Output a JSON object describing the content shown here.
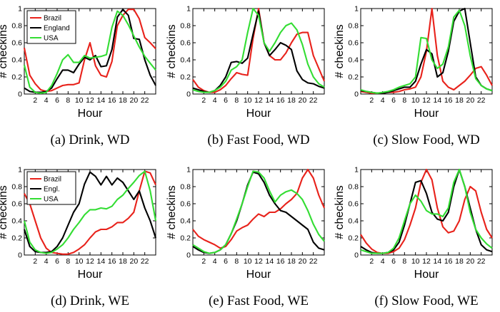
{
  "figure": {
    "type": "small-multiples"
  },
  "chart_data": [
    {
      "type": "line",
      "caption": "(a)  Drink, WD",
      "xlabel": "Hour",
      "ylabel": "# checkins",
      "xlim": [
        0,
        24
      ],
      "ylim": [
        0,
        1
      ],
      "xticks": [
        2,
        4,
        6,
        8,
        10,
        12,
        14,
        16,
        18,
        20,
        22
      ],
      "yticks": [
        0,
        0.2,
        0.4,
        0.6,
        0.8,
        1
      ],
      "legend": {
        "placement": "top-left",
        "entries": [
          "Brazil",
          "England",
          "USA"
        ]
      },
      "x": [
        0,
        1,
        2,
        3,
        4,
        5,
        6,
        7,
        8,
        9,
        10,
        11,
        12,
        13,
        14,
        15,
        16,
        17,
        18,
        19,
        20,
        21,
        22,
        23,
        24
      ],
      "series": [
        {
          "name": "Brazil",
          "color": "#e8221b",
          "values": [
            0.54,
            0.22,
            0.12,
            0.05,
            0.03,
            0.04,
            0.07,
            0.1,
            0.11,
            0.11,
            0.13,
            0.4,
            0.6,
            0.33,
            0.22,
            0.2,
            0.38,
            0.8,
            0.92,
            0.99,
            0.99,
            0.88,
            0.66,
            0.6,
            0.53
          ]
        },
        {
          "name": "England",
          "color": "#000000",
          "values": [
            0.07,
            0.03,
            0.02,
            0.02,
            0.03,
            0.07,
            0.18,
            0.28,
            0.28,
            0.25,
            0.35,
            0.43,
            0.4,
            0.45,
            0.32,
            0.33,
            0.52,
            0.9,
            0.99,
            0.92,
            0.65,
            0.64,
            0.4,
            0.22,
            0.1
          ]
        },
        {
          "name": "USA",
          "color": "#33dd33",
          "values": [
            0.34,
            0.08,
            0.02,
            0.01,
            0.02,
            0.1,
            0.24,
            0.4,
            0.46,
            0.37,
            0.37,
            0.45,
            0.42,
            0.43,
            0.44,
            0.46,
            0.78,
            0.97,
            0.92,
            0.81,
            0.68,
            0.55,
            0.44,
            0.36,
            0.28
          ]
        }
      ]
    },
    {
      "type": "line",
      "caption": "(b)  Fast Food, WD",
      "xlabel": "Hour",
      "ylabel": "# checkins",
      "xlim": [
        0,
        24
      ],
      "ylim": [
        0,
        1
      ],
      "xticks": [
        2,
        4,
        6,
        8,
        10,
        12,
        14,
        16,
        18,
        20,
        22
      ],
      "yticks": [
        0,
        0.2,
        0.4,
        0.6,
        0.8,
        1
      ],
      "legend": null,
      "x": [
        0,
        1,
        2,
        3,
        4,
        5,
        6,
        7,
        8,
        9,
        10,
        11,
        12,
        13,
        14,
        15,
        16,
        17,
        18,
        19,
        20,
        21,
        22,
        23,
        24
      ],
      "series": [
        {
          "name": "Brazil",
          "color": "#e8221b",
          "values": [
            0.17,
            0.08,
            0.04,
            0.02,
            0.02,
            0.05,
            0.1,
            0.18,
            0.25,
            0.23,
            0.22,
            0.65,
            1.0,
            0.6,
            0.45,
            0.4,
            0.4,
            0.48,
            0.6,
            0.7,
            0.72,
            0.72,
            0.45,
            0.3,
            0.15
          ]
        },
        {
          "name": "England",
          "color": "#000000",
          "values": [
            0.07,
            0.05,
            0.03,
            0.02,
            0.04,
            0.1,
            0.2,
            0.37,
            0.38,
            0.36,
            0.42,
            0.7,
            0.97,
            0.6,
            0.45,
            0.52,
            0.6,
            0.57,
            0.52,
            0.27,
            0.17,
            0.13,
            0.12,
            0.09,
            0.07
          ]
        },
        {
          "name": "USA",
          "color": "#33dd33",
          "values": [
            0.05,
            0.03,
            0.02,
            0.02,
            0.04,
            0.08,
            0.15,
            0.28,
            0.32,
            0.4,
            0.72,
            1.0,
            0.92,
            0.6,
            0.5,
            0.6,
            0.72,
            0.8,
            0.83,
            0.75,
            0.58,
            0.35,
            0.2,
            0.12,
            0.08
          ]
        }
      ]
    },
    {
      "type": "line",
      "caption": "(c)  Slow Food, WD",
      "xlabel": "Hour",
      "ylabel": "# checkins",
      "xlim": [
        0,
        24
      ],
      "ylim": [
        0,
        1
      ],
      "xticks": [
        2,
        4,
        6,
        8,
        10,
        12,
        14,
        16,
        18,
        20,
        22
      ],
      "yticks": [
        0,
        0.2,
        0.4,
        0.6,
        0.8,
        1
      ],
      "legend": null,
      "x": [
        0,
        1,
        2,
        3,
        4,
        5,
        6,
        7,
        8,
        9,
        10,
        11,
        12,
        13,
        14,
        15,
        16,
        17,
        18,
        19,
        20,
        21,
        22,
        23,
        24
      ],
      "series": [
        {
          "name": "Brazil",
          "color": "#e8221b",
          "values": [
            0.03,
            0.02,
            0.01,
            0.01,
            0.01,
            0.02,
            0.02,
            0.03,
            0.05,
            0.06,
            0.08,
            0.2,
            0.5,
            1.0,
            0.45,
            0.15,
            0.08,
            0.05,
            0.1,
            0.15,
            0.22,
            0.3,
            0.32,
            0.22,
            0.1
          ]
        },
        {
          "name": "England",
          "color": "#000000",
          "values": [
            0.04,
            0.03,
            0.02,
            0.01,
            0.01,
            0.02,
            0.04,
            0.06,
            0.08,
            0.08,
            0.15,
            0.35,
            0.52,
            0.47,
            0.2,
            0.25,
            0.5,
            0.85,
            0.97,
            1.0,
            0.6,
            0.2,
            0.1,
            0.06,
            0.04
          ]
        },
        {
          "name": "USA",
          "color": "#33dd33",
          "values": [
            0.05,
            0.03,
            0.02,
            0.01,
            0.02,
            0.03,
            0.05,
            0.08,
            0.1,
            0.12,
            0.2,
            0.66,
            0.65,
            0.4,
            0.3,
            0.35,
            0.55,
            0.9,
            0.98,
            0.8,
            0.45,
            0.18,
            0.1,
            0.06,
            0.04
          ]
        }
      ]
    },
    {
      "type": "line",
      "caption": "(d)  Drink, WE",
      "xlabel": "Hour",
      "ylabel": "# checkins",
      "xlim": [
        0,
        24
      ],
      "ylim": [
        0,
        1
      ],
      "xticks": [
        2,
        4,
        6,
        8,
        10,
        12,
        14,
        16,
        18,
        20,
        22
      ],
      "yticks": [
        0,
        0.2,
        0.4,
        0.6,
        0.8,
        1
      ],
      "legend": {
        "placement": "top-left",
        "entries": [
          "Brazil",
          "Engl.",
          "USA"
        ]
      },
      "x": [
        0,
        1,
        2,
        3,
        4,
        5,
        6,
        7,
        8,
        9,
        10,
        11,
        12,
        13,
        14,
        15,
        16,
        17,
        18,
        19,
        20,
        21,
        22,
        23,
        24
      ],
      "series": [
        {
          "name": "Brazil",
          "color": "#e8221b",
          "values": [
            0.72,
            0.6,
            0.4,
            0.2,
            0.08,
            0.03,
            0.02,
            0.01,
            0.01,
            0.03,
            0.07,
            0.12,
            0.2,
            0.27,
            0.3,
            0.3,
            0.33,
            0.38,
            0.38,
            0.43,
            0.5,
            0.75,
            0.98,
            0.96,
            0.82
          ]
        },
        {
          "name": "Engl.",
          "color": "#000000",
          "values": [
            0.3,
            0.1,
            0.04,
            0.03,
            0.03,
            0.04,
            0.1,
            0.2,
            0.35,
            0.5,
            0.6,
            0.83,
            0.97,
            0.92,
            0.82,
            0.92,
            0.82,
            0.9,
            0.85,
            0.75,
            0.65,
            0.75,
            0.55,
            0.4,
            0.2
          ]
        },
        {
          "name": "USA",
          "color": "#33dd33",
          "values": [
            0.4,
            0.15,
            0.06,
            0.03,
            0.02,
            0.03,
            0.07,
            0.12,
            0.2,
            0.3,
            0.38,
            0.47,
            0.53,
            0.53,
            0.55,
            0.54,
            0.57,
            0.65,
            0.7,
            0.78,
            0.85,
            0.93,
            0.98,
            0.75,
            0.4
          ]
        }
      ]
    },
    {
      "type": "line",
      "caption": "(e)  Fast Food, WE",
      "xlabel": "Hour",
      "ylabel": "# checkins",
      "xlim": [
        0,
        24
      ],
      "ylim": [
        0,
        1
      ],
      "xticks": [
        2,
        4,
        6,
        8,
        10,
        12,
        14,
        16,
        18,
        20,
        22
      ],
      "yticks": [
        0,
        0.2,
        0.4,
        0.6,
        0.8,
        1
      ],
      "legend": null,
      "x": [
        0,
        1,
        2,
        3,
        4,
        5,
        6,
        7,
        8,
        9,
        10,
        11,
        12,
        13,
        14,
        15,
        16,
        17,
        18,
        19,
        20,
        21,
        22,
        23,
        24
      ],
      "series": [
        {
          "name": "Brazil",
          "color": "#e8221b",
          "values": [
            0.3,
            0.22,
            0.18,
            0.15,
            0.12,
            0.08,
            0.1,
            0.18,
            0.28,
            0.32,
            0.35,
            0.42,
            0.48,
            0.45,
            0.5,
            0.5,
            0.54,
            0.6,
            0.65,
            0.72,
            0.9,
            1.0,
            0.9,
            0.7,
            0.55
          ]
        },
        {
          "name": "England",
          "color": "#000000",
          "values": [
            0.1,
            0.06,
            0.03,
            0.02,
            0.03,
            0.06,
            0.12,
            0.25,
            0.4,
            0.6,
            0.82,
            0.97,
            0.95,
            0.85,
            0.7,
            0.6,
            0.52,
            0.5,
            0.45,
            0.4,
            0.35,
            0.3,
            0.15,
            0.08,
            0.06
          ]
        },
        {
          "name": "USA",
          "color": "#33dd33",
          "values": [
            0.12,
            0.08,
            0.04,
            0.02,
            0.03,
            0.06,
            0.12,
            0.25,
            0.42,
            0.6,
            0.8,
            0.98,
            0.97,
            0.9,
            0.75,
            0.62,
            0.7,
            0.74,
            0.76,
            0.72,
            0.65,
            0.52,
            0.36,
            0.24,
            0.16
          ]
        }
      ]
    },
    {
      "type": "line",
      "caption": "(f)  Slow Food, WE",
      "xlabel": "Hour",
      "ylabel": "# checkins",
      "xlim": [
        0,
        24
      ],
      "ylim": [
        0,
        1
      ],
      "xticks": [
        2,
        4,
        6,
        8,
        10,
        12,
        14,
        16,
        18,
        20,
        22
      ],
      "yticks": [
        0,
        0.2,
        0.4,
        0.6,
        0.8,
        1
      ],
      "legend": null,
      "x": [
        0,
        1,
        2,
        3,
        4,
        5,
        6,
        7,
        8,
        9,
        10,
        11,
        12,
        13,
        14,
        15,
        16,
        17,
        18,
        19,
        20,
        21,
        22,
        23,
        24
      ],
      "series": [
        {
          "name": "Brazil",
          "color": "#e8221b",
          "values": [
            0.24,
            0.14,
            0.07,
            0.03,
            0.02,
            0.02,
            0.04,
            0.08,
            0.18,
            0.35,
            0.55,
            0.85,
            1.0,
            0.88,
            0.55,
            0.33,
            0.26,
            0.28,
            0.4,
            0.65,
            0.8,
            0.75,
            0.5,
            0.3,
            0.2
          ]
        },
        {
          "name": "England",
          "color": "#000000",
          "values": [
            0.1,
            0.06,
            0.03,
            0.02,
            0.02,
            0.03,
            0.06,
            0.15,
            0.35,
            0.6,
            0.85,
            0.87,
            0.72,
            0.5,
            0.42,
            0.4,
            0.5,
            0.8,
            1.0,
            0.8,
            0.55,
            0.3,
            0.12,
            0.06,
            0.04
          ]
        },
        {
          "name": "USA",
          "color": "#33dd33",
          "values": [
            0.06,
            0.04,
            0.02,
            0.02,
            0.02,
            0.03,
            0.08,
            0.2,
            0.4,
            0.6,
            0.7,
            0.63,
            0.52,
            0.48,
            0.48,
            0.45,
            0.55,
            0.85,
            1.0,
            0.8,
            0.5,
            0.3,
            0.2,
            0.13,
            0.08
          ]
        }
      ]
    }
  ]
}
